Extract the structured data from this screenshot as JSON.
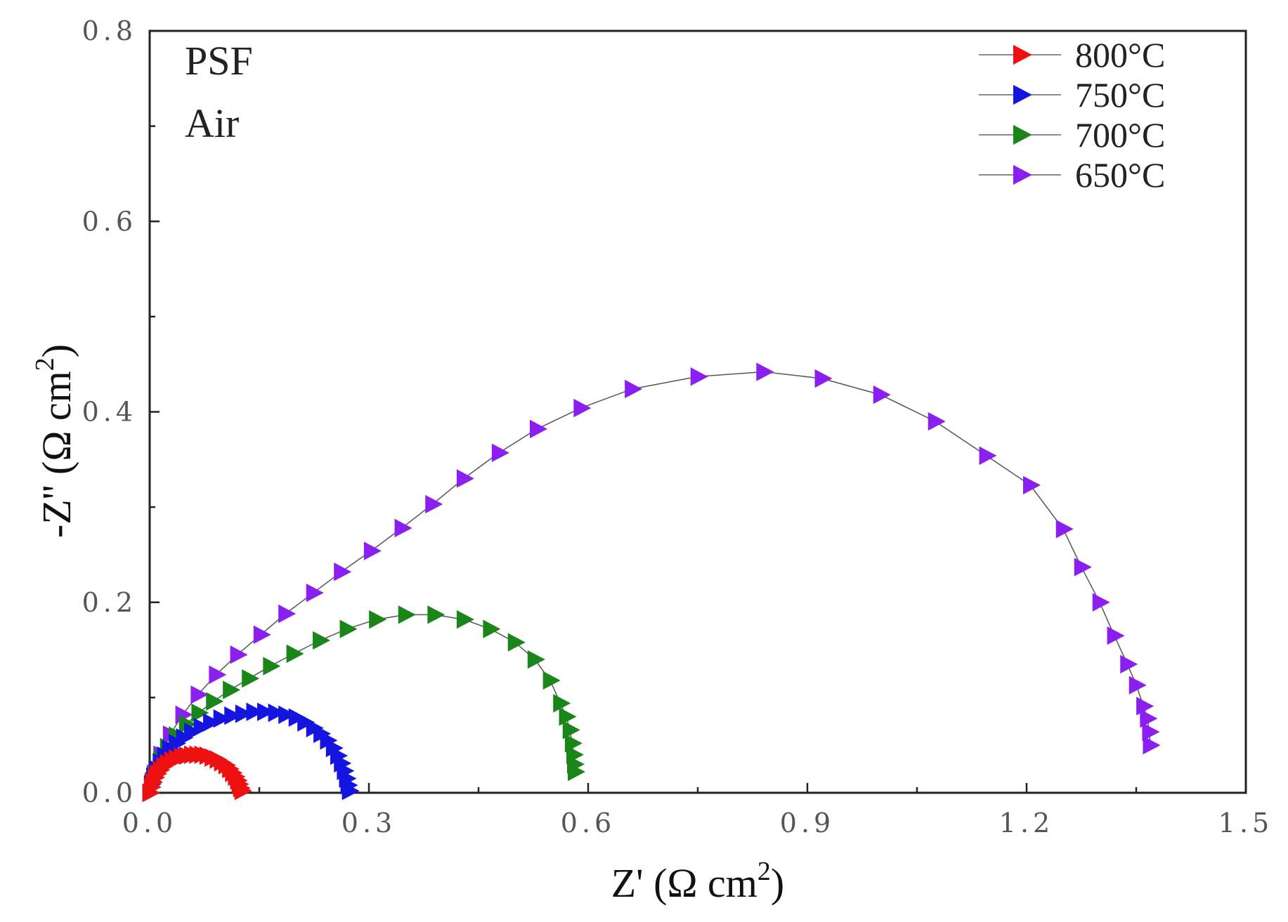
{
  "chart_data": {
    "type": "scatter",
    "title": "",
    "xlabel": "Z' (Ω cm",
    "ylabel": "-Z'' (Ω cm",
    "label_superscript": "2",
    "label_close": ")",
    "xlim": [
      0,
      1.5
    ],
    "ylim": [
      0,
      0.8
    ],
    "xticks": [
      0.0,
      0.3,
      0.6,
      0.9,
      1.2,
      1.5
    ],
    "yticks": [
      0.0,
      0.2,
      0.4,
      0.6,
      0.8
    ],
    "xtick_labels": [
      "0.0",
      "0.3",
      "0.6",
      "0.9",
      "1.2",
      "1.5"
    ],
    "ytick_labels": [
      "0.0",
      "0.2",
      "0.4",
      "0.6",
      "0.8"
    ],
    "grid": false,
    "legend_position": "top-right",
    "marker": "right-triangle",
    "annotations": [
      "PSF",
      "Air"
    ],
    "series": [
      {
        "name": "800°C",
        "color": "#ee1111",
        "points": [
          [
            0.0,
            0.0
          ],
          [
            0.002,
            0.006
          ],
          [
            0.004,
            0.011
          ],
          [
            0.007,
            0.016
          ],
          [
            0.01,
            0.02
          ],
          [
            0.014,
            0.024
          ],
          [
            0.019,
            0.028
          ],
          [
            0.024,
            0.031
          ],
          [
            0.03,
            0.034
          ],
          [
            0.036,
            0.036
          ],
          [
            0.043,
            0.038
          ],
          [
            0.05,
            0.039
          ],
          [
            0.057,
            0.04
          ],
          [
            0.064,
            0.04
          ],
          [
            0.071,
            0.04
          ],
          [
            0.078,
            0.039
          ],
          [
            0.085,
            0.037
          ],
          [
            0.092,
            0.035
          ],
          [
            0.098,
            0.032
          ],
          [
            0.104,
            0.029
          ],
          [
            0.109,
            0.025
          ],
          [
            0.113,
            0.021
          ],
          [
            0.117,
            0.017
          ],
          [
            0.12,
            0.013
          ],
          [
            0.122,
            0.009
          ],
          [
            0.124,
            0.005
          ],
          [
            0.126,
            0.002
          ]
        ]
      },
      {
        "name": "750°C",
        "color": "#1515e0",
        "points": [
          [
            0.0,
            0.0
          ],
          [
            0.002,
            0.009
          ],
          [
            0.005,
            0.017
          ],
          [
            0.009,
            0.025
          ],
          [
            0.014,
            0.032
          ],
          [
            0.02,
            0.039
          ],
          [
            0.027,
            0.046
          ],
          [
            0.036,
            0.052
          ],
          [
            0.046,
            0.058
          ],
          [
            0.057,
            0.064
          ],
          [
            0.07,
            0.069
          ],
          [
            0.083,
            0.074
          ],
          [
            0.097,
            0.078
          ],
          [
            0.112,
            0.081
          ],
          [
            0.127,
            0.083
          ],
          [
            0.142,
            0.085
          ],
          [
            0.157,
            0.085
          ],
          [
            0.172,
            0.084
          ],
          [
            0.186,
            0.082
          ],
          [
            0.2,
            0.079
          ],
          [
            0.212,
            0.074
          ],
          [
            0.224,
            0.068
          ],
          [
            0.234,
            0.062
          ],
          [
            0.243,
            0.055
          ],
          [
            0.251,
            0.047
          ],
          [
            0.257,
            0.039
          ],
          [
            0.262,
            0.031
          ],
          [
            0.266,
            0.023
          ],
          [
            0.269,
            0.015
          ],
          [
            0.271,
            0.008
          ],
          [
            0.273,
            0.002
          ]
        ]
      },
      {
        "name": "700°C",
        "color": "#1a861a",
        "points": [
          [
            0.0,
            0.0
          ],
          [
            0.003,
            0.012
          ],
          [
            0.008,
            0.024
          ],
          [
            0.015,
            0.036
          ],
          [
            0.024,
            0.048
          ],
          [
            0.036,
            0.06
          ],
          [
            0.05,
            0.072
          ],
          [
            0.067,
            0.084
          ],
          [
            0.087,
            0.096
          ],
          [
            0.11,
            0.108
          ],
          [
            0.136,
            0.12
          ],
          [
            0.165,
            0.133
          ],
          [
            0.197,
            0.146
          ],
          [
            0.233,
            0.16
          ],
          [
            0.27,
            0.172
          ],
          [
            0.31,
            0.182
          ],
          [
            0.35,
            0.187
          ],
          [
            0.39,
            0.187
          ],
          [
            0.43,
            0.182
          ],
          [
            0.466,
            0.172
          ],
          [
            0.5,
            0.158
          ],
          [
            0.527,
            0.14
          ],
          [
            0.548,
            0.118
          ],
          [
            0.562,
            0.094
          ],
          [
            0.57,
            0.08
          ],
          [
            0.575,
            0.066
          ],
          [
            0.578,
            0.052
          ],
          [
            0.58,
            0.04
          ],
          [
            0.581,
            0.03
          ],
          [
            0.582,
            0.022
          ]
        ]
      },
      {
        "name": "650°C",
        "color": "#8b1ff0",
        "points": [
          [
            0.0,
            0.0
          ],
          [
            0.006,
            0.02
          ],
          [
            0.015,
            0.04
          ],
          [
            0.028,
            0.061
          ],
          [
            0.045,
            0.082
          ],
          [
            0.066,
            0.103
          ],
          [
            0.091,
            0.124
          ],
          [
            0.12,
            0.145
          ],
          [
            0.152,
            0.166
          ],
          [
            0.186,
            0.188
          ],
          [
            0.224,
            0.21
          ],
          [
            0.262,
            0.232
          ],
          [
            0.303,
            0.254
          ],
          [
            0.345,
            0.278
          ],
          [
            0.387,
            0.303
          ],
          [
            0.43,
            0.33
          ],
          [
            0.478,
            0.357
          ],
          [
            0.53,
            0.382
          ],
          [
            0.59,
            0.404
          ],
          [
            0.66,
            0.424
          ],
          [
            0.75,
            0.437
          ],
          [
            0.84,
            0.442
          ],
          [
            0.92,
            0.435
          ],
          [
            1.0,
            0.418
          ],
          [
            1.075,
            0.39
          ],
          [
            1.145,
            0.354
          ],
          [
            1.205,
            0.323
          ],
          [
            1.25,
            0.277
          ],
          [
            1.275,
            0.237
          ],
          [
            1.3,
            0.2
          ],
          [
            1.32,
            0.165
          ],
          [
            1.338,
            0.135
          ],
          [
            1.35,
            0.113
          ],
          [
            1.36,
            0.091
          ],
          [
            1.365,
            0.078
          ],
          [
            1.368,
            0.064
          ],
          [
            1.369,
            0.05
          ]
        ]
      }
    ]
  }
}
